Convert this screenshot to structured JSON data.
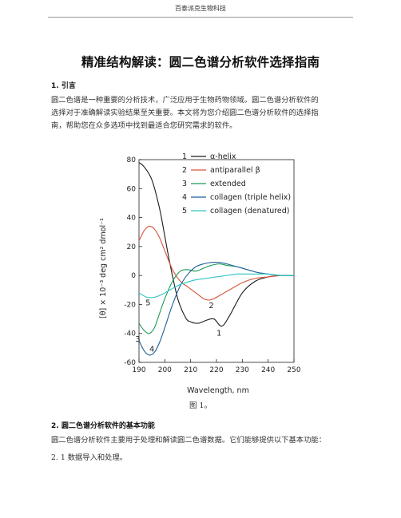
{
  "header": {
    "company": "百泰派克生物科技"
  },
  "document": {
    "title": "精准结构解读：圆二色谱分析软件选择指南",
    "section1_heading": "1.  引言",
    "section1_lines": [
      "圆二色谱是一种重要的分析技术，广泛应用于生物药物领域。圆二色谱分析软件的",
      "选择对于准确解读实验结果至关重要。本文将为您介绍圆二色谱分析软件的选择指",
      "南，帮助您在众多选项中找到最适合您研究需求的软件。"
    ],
    "figure_caption": "图 1。",
    "section2_heading": "2.  圆二色谱分析软件的基本功能",
    "section2_line": "圆二色谱分析软件主要用于处理和解读圆二色谱数据。它们能够提供以下基本功能：",
    "section2_1": "2. 1  数据导入和处理。"
  },
  "chart_data": {
    "type": "line",
    "xlabel": "Wavelength, nm",
    "ylabel": "[θ] × 10⁻³ deg cm² dmol⁻¹",
    "xlim": [
      190,
      250
    ],
    "ylim": [
      -60,
      80
    ],
    "xticks": [
      190,
      200,
      210,
      220,
      230,
      240,
      250
    ],
    "yticks": [
      -60,
      -40,
      -20,
      0,
      20,
      40,
      60,
      80
    ],
    "legend_placement": "top-right",
    "series": [
      {
        "name": "α-helix",
        "label": "1",
        "color": "#1a1a1a",
        "x": [
          190,
          192,
          195,
          198,
          200,
          202,
          205,
          208,
          210,
          213,
          216,
          219,
          222,
          225,
          230,
          235,
          240,
          245,
          250
        ],
        "y": [
          78,
          75,
          66,
          46,
          27,
          8,
          -16,
          -29,
          -32,
          -33,
          -31,
          -30,
          -35,
          -28,
          -12,
          -4,
          -1,
          0,
          0
        ]
      },
      {
        "name": "antiparallel β",
        "label": "2",
        "color": "#d9533a",
        "x": [
          190,
          192,
          194,
          196,
          198,
          200,
          203,
          206,
          209,
          212,
          215,
          217,
          219,
          222,
          225,
          230,
          235,
          240,
          245,
          250
        ],
        "y": [
          24,
          31,
          34,
          32,
          26,
          17,
          4,
          -4,
          -8,
          -12,
          -16,
          -17,
          -16,
          -13,
          -10,
          -5,
          -2,
          -1,
          0,
          0
        ]
      },
      {
        "name": "extended",
        "label": "3",
        "color": "#1a9b55",
        "x": [
          190,
          192,
          194,
          196,
          198,
          200,
          203,
          206,
          209,
          212,
          215,
          218,
          221,
          224,
          228,
          232,
          236,
          240,
          245,
          250
        ],
        "y": [
          -33,
          -38,
          -40,
          -36,
          -26,
          -16,
          -4,
          3,
          4,
          3,
          5,
          7,
          8,
          7,
          6,
          4,
          2,
          1,
          0,
          0
        ]
      },
      {
        "name": "collagen (triple helix)",
        "label": "4",
        "color": "#1f5f9a",
        "x": [
          190,
          192,
          194,
          196,
          198,
          200,
          203,
          206,
          209,
          212,
          215,
          218,
          221,
          224,
          228,
          232,
          236,
          240,
          245,
          250
        ],
        "y": [
          -45,
          -52,
          -55,
          -53,
          -46,
          -36,
          -20,
          -7,
          1,
          6,
          8,
          9,
          9,
          8,
          6,
          4,
          2,
          1,
          0,
          0
        ]
      },
      {
        "name": "collagen (denatured)",
        "label": "5",
        "color": "#2fc4c4",
        "x": [
          190,
          193,
          196,
          199,
          202,
          205,
          208,
          212,
          216,
          220,
          224,
          228,
          232,
          236,
          240,
          245,
          250
        ],
        "y": [
          -12,
          -15,
          -15,
          -13,
          -10,
          -7,
          -5,
          -3,
          -2,
          -1,
          0,
          1,
          1,
          1,
          1,
          0,
          0
        ]
      }
    ],
    "curve_labels": [
      {
        "text": "1",
        "x": 221,
        "y": -40
      },
      {
        "text": "2",
        "x": 218,
        "y": -21
      },
      {
        "text": "3",
        "x": 189.5,
        "y": -44
      },
      {
        "text": "4",
        "x": 195,
        "y": -51
      },
      {
        "text": "5",
        "x": 193.5,
        "y": -19
      }
    ]
  }
}
